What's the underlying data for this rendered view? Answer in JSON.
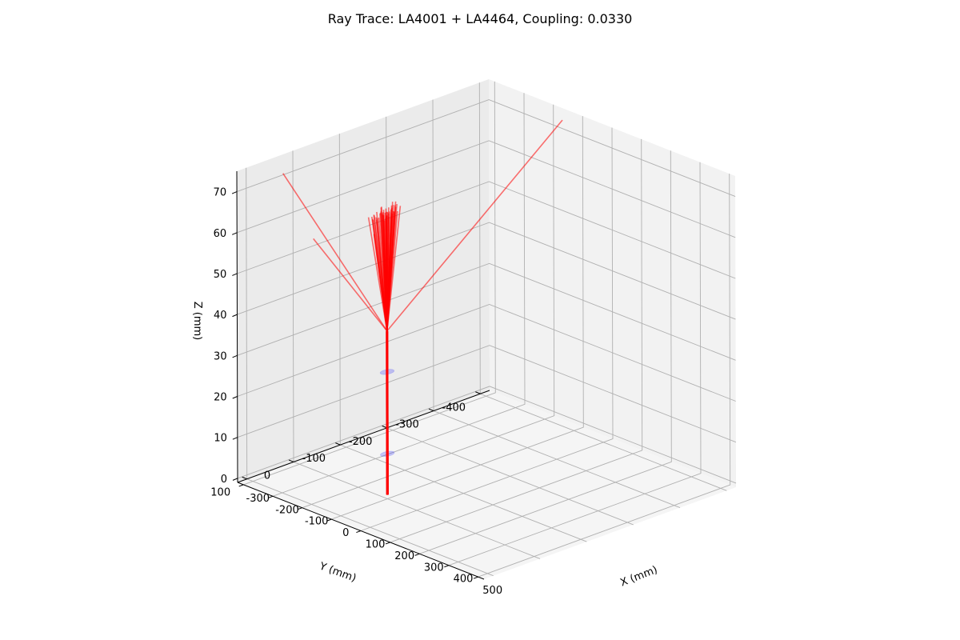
{
  "chart_data": {
    "type": "line3d",
    "title": "Ray Trace: LA4001 + LA4464, Coupling: 0.0330",
    "xlabel": "X (mm)",
    "ylabel": "Y (mm)",
    "zlabel": "Z (mm)",
    "x_ticks": [
      -300,
      -200,
      -100,
      0,
      100,
      200,
      300,
      400,
      500
    ],
    "y_ticks": [
      -400,
      -300,
      -200,
      -100,
      0,
      100
    ],
    "z_ticks": [
      0,
      10,
      20,
      30,
      40,
      50,
      60,
      70
    ],
    "xlim": [
      -320,
      520
    ],
    "ylim": [
      -420,
      120
    ],
    "zlim": [
      -1,
      75
    ],
    "grid": true,
    "ray_color": "#ff0000",
    "lens_color": "#0000ff",
    "lenses": [
      {
        "name": "LA4001",
        "z": 10,
        "radius": 12.7
      },
      {
        "name": "LA4464",
        "z": 30,
        "radius": 12.7
      }
    ],
    "focus": {
      "x": 0,
      "y": 0,
      "z": 40
    },
    "rays_before_focus": [
      {
        "start": [
          -0.6,
          0.3,
          0
        ],
        "lens1": [
          -0.6,
          0.3,
          10
        ],
        "lens2": [
          -0.4,
          0.2,
          30
        ]
      },
      {
        "start": [
          0.6,
          -0.3,
          0
        ],
        "lens1": [
          0.6,
          -0.3,
          10
        ],
        "lens2": [
          0.4,
          -0.2,
          30
        ]
      },
      {
        "start": [
          0.3,
          0.6,
          0
        ],
        "lens1": [
          0.3,
          0.6,
          10
        ],
        "lens2": [
          0.2,
          0.4,
          30
        ]
      },
      {
        "start": [
          -0.3,
          -0.6,
          0
        ],
        "lens1": [
          -0.3,
          -0.6,
          10
        ],
        "lens2": [
          -0.2,
          -0.4,
          30
        ]
      }
    ],
    "rays_after_focus": [
      {
        "x": -85.4,
        "y": -430.2,
        "z": 71.2
      },
      {
        "x": -330.3,
        "y": 14.7,
        "z": 69.8
      },
      {
        "x": -60.4,
        "y": 119.4,
        "z": 65.8
      },
      {
        "x": 121.4,
        "y": 103.7,
        "z": 71.4
      },
      {
        "x": -33.5,
        "y": -6.5,
        "z": 67.5
      },
      {
        "x": 17.2,
        "y": 40.2,
        "z": 69.3
      },
      {
        "x": 8.9,
        "y": 36.0,
        "z": 69.1
      },
      {
        "x": -4.7,
        "y": 24.0,
        "z": 69.1
      },
      {
        "x": 21.0,
        "y": 14.3,
        "z": 69.0
      },
      {
        "x": -22.5,
        "y": -26.6,
        "z": 69.8
      },
      {
        "x": -3.5,
        "y": -11.5,
        "z": 69.1
      },
      {
        "x": 21.2,
        "y": 35.0,
        "z": 69.1
      },
      {
        "x": -29.6,
        "y": -7.4,
        "z": 69.2
      },
      {
        "x": -19.7,
        "y": -34.2,
        "z": 69.0
      },
      {
        "x": 8.4,
        "y": -23.9,
        "z": 69.8
      },
      {
        "x": 21.3,
        "y": 34.0,
        "z": 69.5
      },
      {
        "x": -32.5,
        "y": 1.1,
        "z": 68.2
      },
      {
        "x": 2.2,
        "y": 40.5,
        "z": 69.5
      },
      {
        "x": -4.4,
        "y": 24.9,
        "z": 69.3
      },
      {
        "x": 18.7,
        "y": 1.8,
        "z": 69.4
      },
      {
        "x": 12.8,
        "y": 31.0,
        "z": 69.4
      },
      {
        "x": -3.6,
        "y": -6.5,
        "z": 69.8
      },
      {
        "x": 27.2,
        "y": 19.4,
        "z": 69.1
      },
      {
        "x": -3.7,
        "y": 29.6,
        "z": 69.0
      },
      {
        "x": 19.9,
        "y": 8.2,
        "z": 69.6
      },
      {
        "x": 32.3,
        "y": 8.3,
        "z": 69.9
      },
      {
        "x": -14.4,
        "y": 3.2,
        "z": 69.9
      },
      {
        "x": 10.7,
        "y": 13.3,
        "z": 69.1
      },
      {
        "x": 27.7,
        "y": 12.6,
        "z": 69.2
      },
      {
        "x": -15.1,
        "y": -28.7,
        "z": 70.0
      },
      {
        "x": 24.8,
        "y": 15.6,
        "z": 69.6
      },
      {
        "x": 13.4,
        "y": -7.8,
        "z": 69.1
      },
      {
        "x": -5.7,
        "y": -14.0,
        "z": 69.9
      },
      {
        "x": 14.9,
        "y": -6.2,
        "z": 69.4
      },
      {
        "x": 26.7,
        "y": 16.0,
        "z": 69.6
      },
      {
        "x": -14.7,
        "y": 3.3,
        "z": 68.9
      },
      {
        "x": 7.2,
        "y": -18.5,
        "z": 68.7
      },
      {
        "x": 20.7,
        "y": 18.0,
        "z": 68.3
      },
      {
        "x": -3.7,
        "y": 14.8,
        "z": 68.2
      },
      {
        "x": 25.0,
        "y": 6.1,
        "z": 68.6
      },
      {
        "x": -20.1,
        "y": -9.3,
        "z": 67.9
      },
      {
        "x": 4.9,
        "y": 11.0,
        "z": 69.6
      },
      {
        "x": 33.2,
        "y": 3.5,
        "z": 69.8
      },
      {
        "x": -23.6,
        "y": -8.1,
        "z": 68.6
      },
      {
        "x": -0.8,
        "y": -1.4,
        "z": 69.0
      },
      {
        "x": -12.2,
        "y": -25.7,
        "z": 69.3
      },
      {
        "x": 28.7,
        "y": 8.7,
        "z": 69.2
      },
      {
        "x": 0.4,
        "y": 13.1,
        "z": 69.4
      },
      {
        "x": 22.1,
        "y": 14.5,
        "z": 69.3
      },
      {
        "x": -11.7,
        "y": -26.5,
        "z": 68.8
      },
      {
        "x": 1.4,
        "y": 2.3,
        "z": 69.2
      },
      {
        "x": 8.9,
        "y": -7.7,
        "z": 69.2
      },
      {
        "x": 17.9,
        "y": 5.4,
        "z": 69.9
      },
      {
        "x": -4.3,
        "y": -13.5,
        "z": 69.4
      },
      {
        "x": -10.8,
        "y": -5.1,
        "z": 69.4
      },
      {
        "x": 9.3,
        "y": 13.7,
        "z": 69.2
      },
      {
        "x": 5.7,
        "y": 1.4,
        "z": 69.2
      },
      {
        "x": -18.0,
        "y": -25.6,
        "z": 69.2
      },
      {
        "x": 3.6,
        "y": 11.3,
        "z": 69.3
      },
      {
        "x": 11.8,
        "y": 15.9,
        "z": 69.3
      }
    ]
  }
}
